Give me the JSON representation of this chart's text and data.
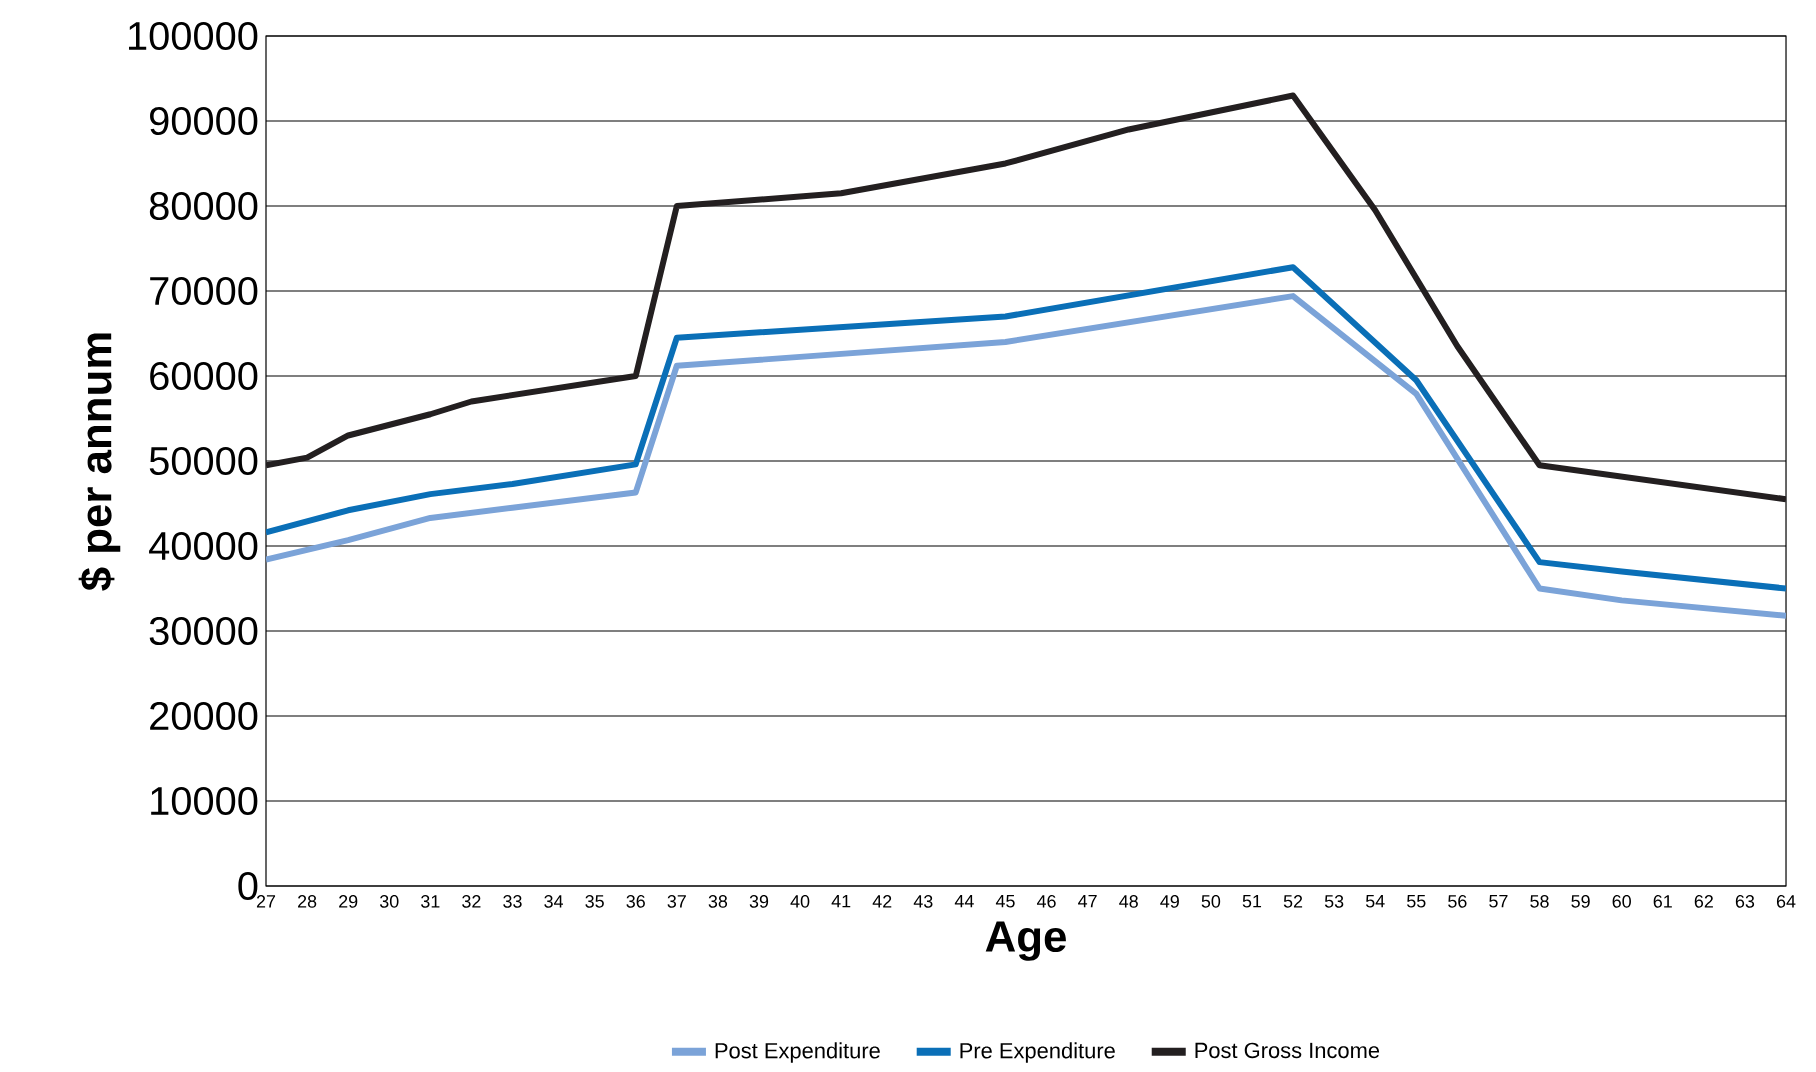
{
  "chart_data": {
    "type": "line",
    "xlabel": "Age",
    "ylabel": "$ per annum",
    "xlim": [
      27,
      64
    ],
    "xticks": [
      27,
      28,
      29,
      30,
      31,
      32,
      33,
      34,
      35,
      36,
      37,
      38,
      39,
      40,
      41,
      42,
      43,
      44,
      45,
      46,
      47,
      48,
      49,
      50,
      51,
      52,
      53,
      54,
      55,
      56,
      57,
      58,
      59,
      60,
      61,
      62,
      63,
      64
    ],
    "ylim": [
      0,
      100000
    ],
    "yticks": [
      0,
      10000,
      20000,
      30000,
      40000,
      50000,
      60000,
      70000,
      80000,
      90000,
      100000
    ],
    "grid": "y",
    "legend": "bottom",
    "marker": "none",
    "line_style": "solid",
    "series": [
      {
        "name": "Post Expenditure",
        "color": "#7ba3d8",
        "x": [
          27,
          29,
          31,
          33,
          36,
          37,
          45,
          52,
          55,
          58,
          60,
          64
        ],
        "values": [
          38400,
          40700,
          43300,
          44500,
          46300,
          61200,
          64000,
          69400,
          57900,
          35000,
          33600,
          31800
        ]
      },
      {
        "name": "Pre Expenditure",
        "color": "#0a6fb7",
        "x": [
          27,
          29,
          31,
          33,
          36,
          37,
          45,
          52,
          55,
          58,
          60,
          64
        ],
        "values": [
          41600,
          44200,
          46100,
          47300,
          49600,
          64500,
          67000,
          72800,
          59500,
          38100,
          37000,
          35000
        ]
      },
      {
        "name": "Post Gross Income",
        "color": "#231f20",
        "x": [
          27,
          28,
          29,
          31,
          32,
          36,
          37,
          41,
          45,
          48,
          52,
          54,
          56,
          58,
          64
        ],
        "values": [
          49500,
          50400,
          53000,
          55500,
          57000,
          60000,
          80000,
          81500,
          85000,
          89000,
          93000,
          79500,
          63500,
          49500,
          45500
        ]
      }
    ]
  }
}
